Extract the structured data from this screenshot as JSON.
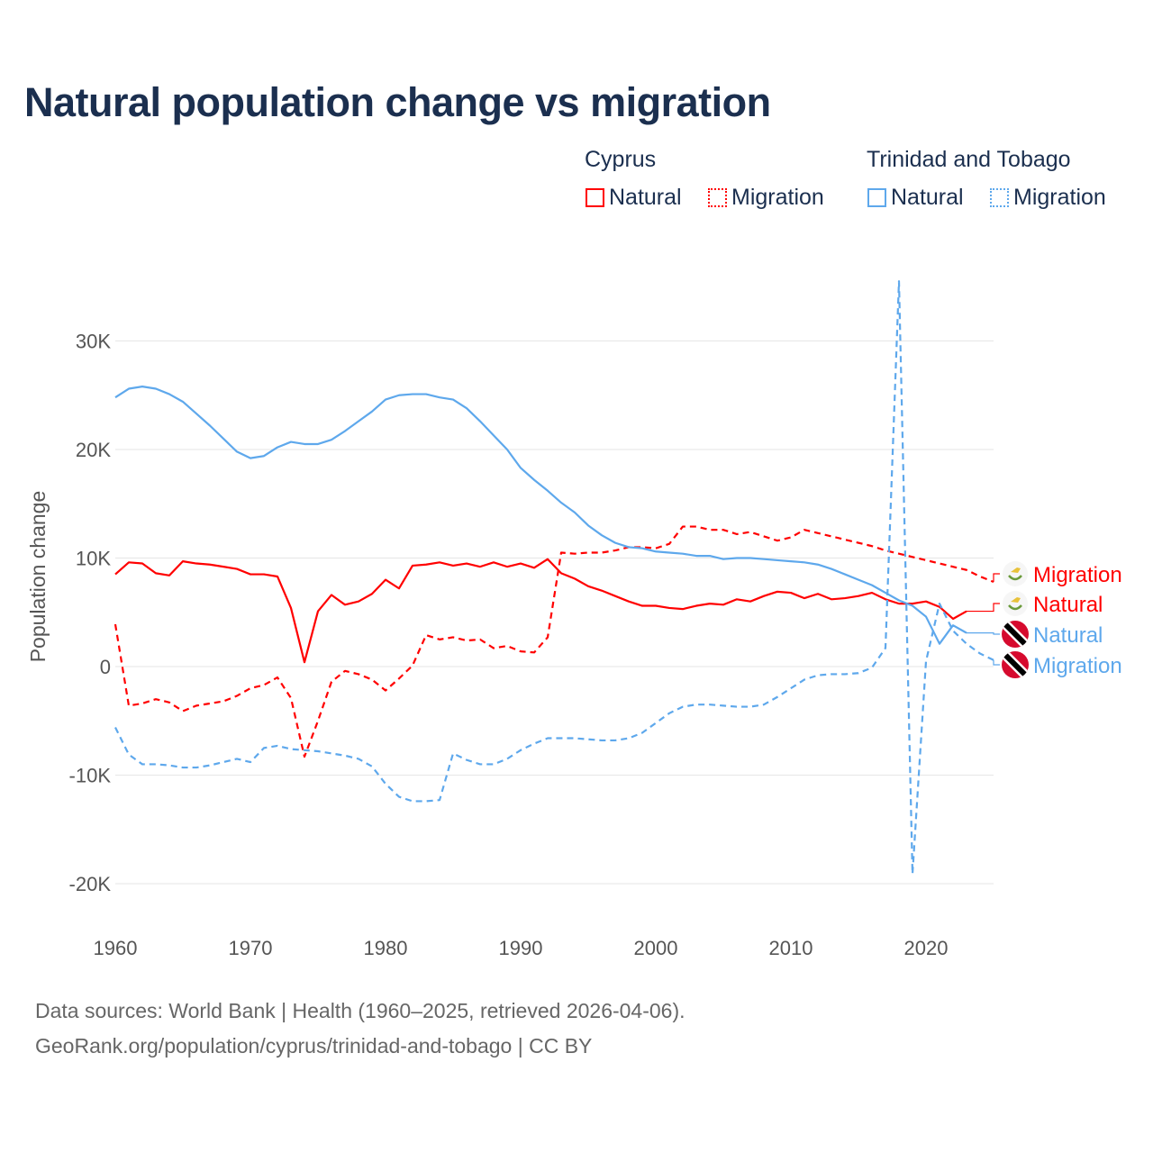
{
  "title": "Natural population change vs migration",
  "legend": {
    "groups": [
      {
        "country": "Cyprus",
        "items": [
          {
            "label": "Natural",
            "style": "solid",
            "color": "#ff0000"
          },
          {
            "label": "Migration",
            "style": "dotted",
            "color": "#ff0000"
          }
        ]
      },
      {
        "country": "Trinidad and Tobago",
        "items": [
          {
            "label": "Natural",
            "style": "solid",
            "color": "#5ea8ec"
          },
          {
            "label": "Migration",
            "style": "dotted",
            "color": "#5ea8ec"
          }
        ]
      }
    ]
  },
  "footer": {
    "line1": "Data sources: World Bank | Health (1960–2025, retrieved 2026-04-06).",
    "line2": "GeoRank.org/population/cyprus/trinidad-and-tobago | CC BY"
  },
  "chart_data": {
    "type": "line",
    "title": "Natural population change vs migration",
    "xlabel": "",
    "ylabel": "Population change",
    "xlim": [
      1960,
      2025
    ],
    "ylim": [
      -22000,
      36000
    ],
    "grid": true,
    "x_ticks": [
      {
        "value": 1960,
        "label": "1960"
      },
      {
        "value": 1970,
        "label": "1970"
      },
      {
        "value": 1980,
        "label": "1980"
      },
      {
        "value": 1990,
        "label": "1990"
      },
      {
        "value": 2000,
        "label": "2000"
      },
      {
        "value": 2010,
        "label": "2010"
      },
      {
        "value": 2020,
        "label": "2020"
      }
    ],
    "y_ticks": [
      {
        "value": 30000,
        "label": "30K"
      },
      {
        "value": 20000,
        "label": "20K"
      },
      {
        "value": 10000,
        "label": "10K"
      },
      {
        "value": 0,
        "label": "0"
      },
      {
        "value": -10000,
        "label": "-10K"
      },
      {
        "value": -20000,
        "label": "-20K"
      }
    ],
    "legend_placement": "top-right",
    "series": [
      {
        "name": "Cyprus Natural",
        "end_label": "Natural",
        "flag": "cyprus-flag",
        "color": "#ff0000",
        "dash": false,
        "start": 1960,
        "values": [
          8500,
          9600,
          9500,
          8600,
          8400,
          9700,
          9500,
          9400,
          9200,
          9000,
          8500,
          8500,
          8300,
          5400,
          400,
          5100,
          6600,
          5700,
          6000,
          6700,
          8000,
          7200,
          9300,
          9400,
          9600,
          9300,
          9500,
          9200,
          9600,
          9200,
          9500,
          9100,
          9900,
          8600,
          8100,
          7400,
          7000,
          6500,
          6000,
          5600,
          5600,
          5400,
          5300,
          5600,
          5800,
          5700,
          6200,
          6000,
          6500,
          6900,
          6800,
          6300,
          6700,
          6200,
          6300,
          6500,
          6800,
          6200,
          5800,
          5800,
          6000,
          5500,
          4400,
          5100
        ]
      },
      {
        "name": "Cyprus Migration",
        "end_label": "Migration",
        "flag": "cyprus-flag",
        "color": "#ff0000",
        "dash": true,
        "start": 1960,
        "values": [
          3900,
          -3600,
          -3400,
          -3000,
          -3300,
          -4100,
          -3600,
          -3400,
          -3200,
          -2700,
          -2000,
          -1700,
          -1000,
          -2900,
          -8300,
          -5000,
          -1400,
          -400,
          -700,
          -1200,
          -2200,
          -1100,
          100,
          2900,
          2500,
          2700,
          2400,
          2500,
          1700,
          1900,
          1400,
          1300,
          2700,
          10500,
          10400,
          10500,
          10500,
          10700,
          11000,
          11000,
          10900,
          11300,
          12900,
          12900,
          12600,
          12600,
          12200,
          12400,
          12000,
          11600,
          11900,
          12600,
          12300,
          12000,
          11700,
          11400,
          11100,
          10700,
          10400,
          10100,
          9800,
          9500,
          9200,
          8900,
          8300,
          7800
        ]
      },
      {
        "name": "Trinidad and Tobago Natural",
        "end_label": "Natural",
        "flag": "trinidad-flag",
        "color": "#5ea8ec",
        "dash": false,
        "start": 1960,
        "values": [
          24800,
          25600,
          25800,
          25600,
          25100,
          24400,
          23300,
          22200,
          21000,
          19800,
          19200,
          19400,
          20200,
          20700,
          20500,
          20500,
          20900,
          21700,
          22600,
          23500,
          24600,
          25000,
          25100,
          25100,
          24800,
          24600,
          23800,
          22600,
          21300,
          20000,
          18300,
          17200,
          16200,
          15100,
          14200,
          13000,
          12100,
          11400,
          11000,
          10900,
          10600,
          10500,
          10400,
          10200,
          10200,
          9900,
          10000,
          10000,
          9900,
          9800,
          9700,
          9600,
          9400,
          9000,
          8500,
          8000,
          7500,
          6800,
          6100,
          5600,
          4600,
          2100,
          3800,
          3100
        ]
      },
      {
        "name": "Trinidad and Tobago Migration",
        "end_label": "Migration",
        "flag": "trinidad-flag",
        "color": "#5ea8ec",
        "dash": true,
        "start": 1960,
        "values": [
          -5600,
          -8100,
          -9000,
          -9000,
          -9100,
          -9300,
          -9300,
          -9100,
          -8800,
          -8500,
          -8800,
          -7500,
          -7300,
          -7600,
          -7700,
          -7800,
          -8000,
          -8200,
          -8500,
          -9200,
          -10800,
          -12000,
          -12400,
          -12400,
          -12300,
          -8000,
          -8600,
          -9000,
          -9000,
          -8500,
          -7700,
          -7100,
          -6600,
          -6600,
          -6600,
          -6700,
          -6800,
          -6800,
          -6600,
          -6100,
          -5200,
          -4300,
          -3700,
          -3500,
          -3500,
          -3600,
          -3700,
          -3700,
          -3500,
          -2800,
          -2000,
          -1200,
          -800,
          -700,
          -700,
          -600,
          -100,
          1700,
          35500,
          -19100,
          500,
          5800,
          3300,
          2100,
          1200,
          600
        ]
      }
    ]
  }
}
